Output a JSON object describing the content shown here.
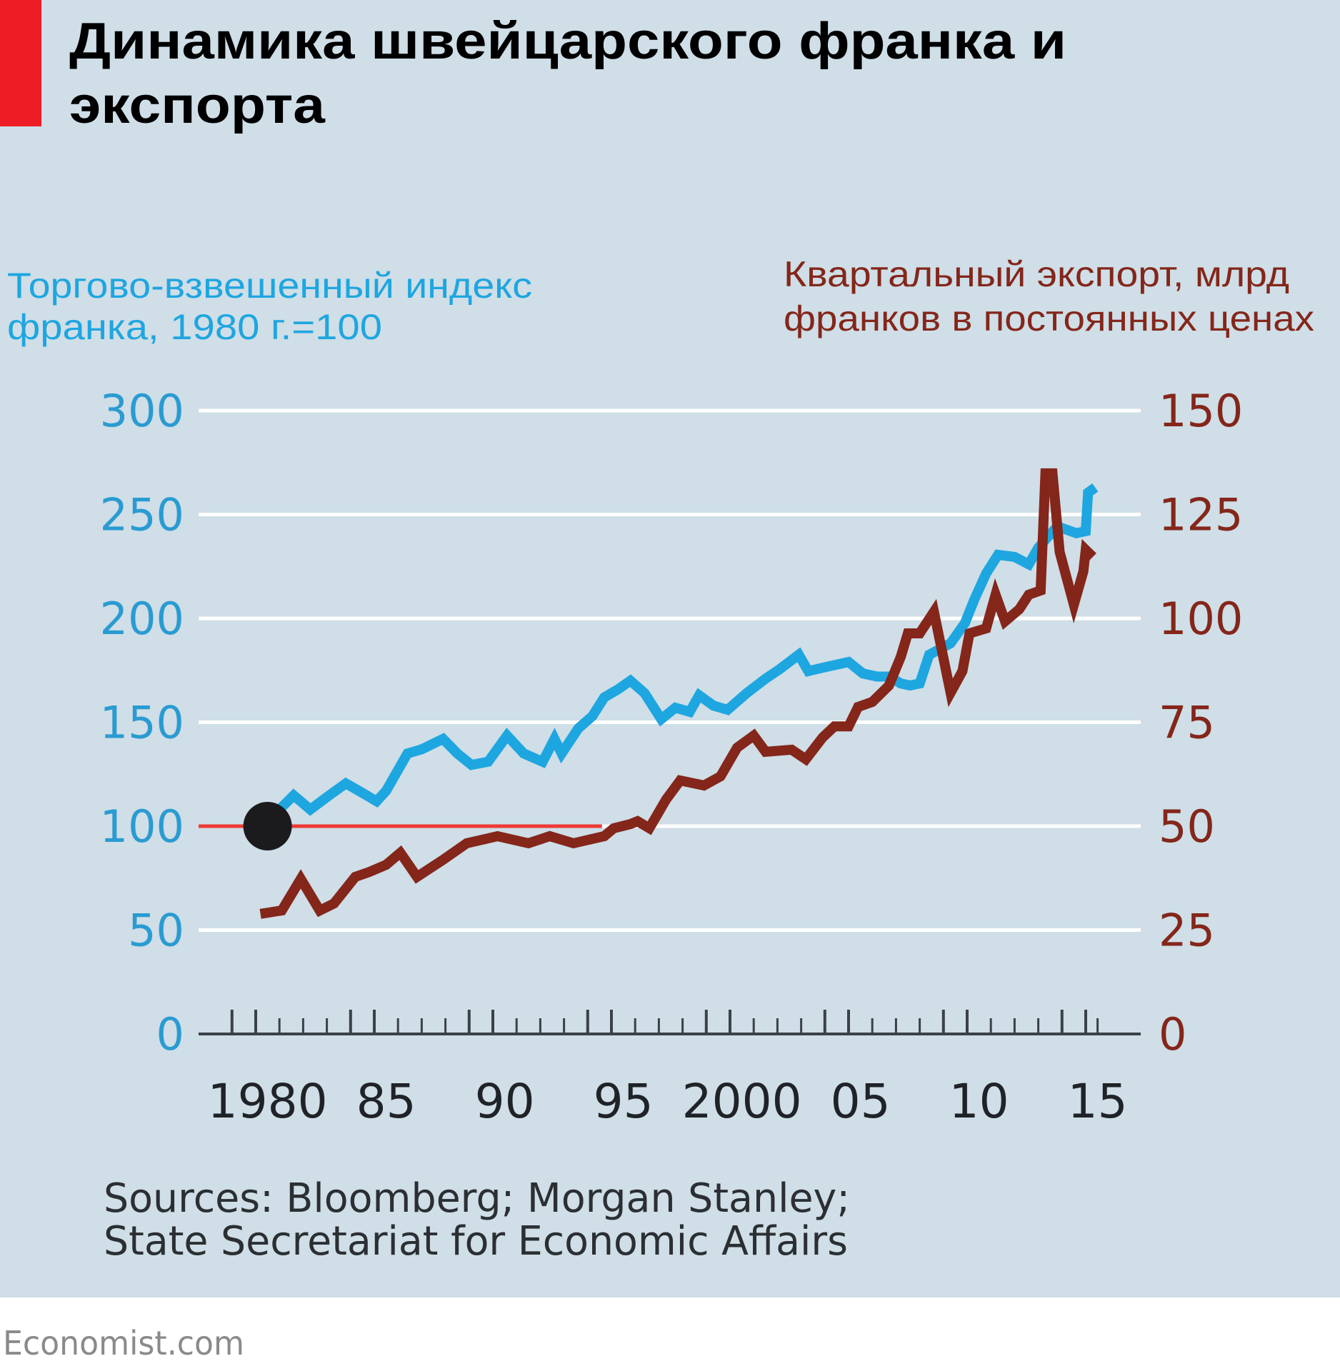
{
  "title": {
    "line1": "Динамика швейцарского франка и",
    "line2": "экспорта"
  },
  "colors": {
    "background": "#cfdee7",
    "accent_bar": "#ee1c25",
    "franc_series": "#1ea6e0",
    "exports_series": "#84261a",
    "reference_line": "#ee3a34",
    "marker": "#1b1b1e"
  },
  "footer": {
    "sources_line1": "Sources: Bloomberg; Morgan Stanley;",
    "sources_line2": "State Secretariat for Economic Affairs",
    "brand": "Economist.com"
  },
  "chart_data": {
    "type": "line",
    "title": "Динамика швейцарского франка и экспорта",
    "x_tick_labels": [
      "1980",
      "85",
      "90",
      "95",
      "2000",
      "05",
      "10",
      "15"
    ],
    "x_tick_years": [
      1980,
      1985,
      1990,
      1995,
      2000,
      2005,
      2010,
      2015
    ],
    "xlim": [
      1979,
      2016
    ],
    "grid": true,
    "left_axis": {
      "label_line1": "Торгово-взвешенный индекс",
      "label_line2": "франка, 1980 г.=100",
      "ylim": [
        0,
        300
      ],
      "ticks": [
        "0",
        "50",
        "100",
        "150",
        "200",
        "250",
        "300"
      ]
    },
    "right_axis": {
      "label_line1": "Квартальный экспорт, млрд",
      "label_line2": "франков в постоянных ценах",
      "ylim": [
        0,
        150
      ],
      "ticks": [
        "0",
        "25",
        "50",
        "75",
        "100",
        "125",
        "150"
      ]
    },
    "reference_line": {
      "axis": "left",
      "value": 100,
      "from": 1979,
      "to": 1994.6
    },
    "marker": {
      "x": 1980.5,
      "y": 100,
      "axis": "left"
    },
    "series": [
      {
        "name": "Торгово-взвешенный индекс франка, 1980 г.=100",
        "axis": "left",
        "x": [
          1980.6,
          1981.0,
          1981.6,
          1982.3,
          1983.0,
          1983.8,
          1984.5,
          1985.1,
          1985.5,
          1986.4,
          1987.0,
          1987.9,
          1988.5,
          1989.1,
          1989.8,
          1990.6,
          1991.3,
          1992.1,
          1992.6,
          1992.9,
          1993.6,
          1994.2,
          1994.7,
          1995.3,
          1995.8,
          1996.4,
          1997.1,
          1997.7,
          1998.3,
          1998.7,
          1999.3,
          1999.9,
          2000.7,
          2001.5,
          2002.1,
          2002.9,
          2003.3,
          2004.2,
          2005.0,
          2005.6,
          2006.2,
          2006.7,
          2007.2,
          2007.6,
          2008.0,
          2008.4,
          2009.3,
          2009.9,
          2010.3,
          2010.8,
          2011.3,
          2012.0,
          2012.6,
          2013.0,
          2013.8,
          2014.6,
          2015.0,
          2015.1,
          2015.4
        ],
        "y": [
          102,
          108,
          114.8,
          108,
          114,
          120.6,
          116,
          112,
          117,
          135,
          137,
          142,
          135,
          129.5,
          131,
          143.6,
          135,
          131,
          142,
          135,
          147,
          153,
          162,
          166,
          170,
          164,
          151.5,
          157,
          155,
          163,
          158,
          156,
          164,
          171,
          175.6,
          182.5,
          174.6,
          177,
          179,
          173.5,
          172,
          172,
          168.7,
          167.7,
          168.7,
          182.5,
          188,
          197.6,
          209,
          221.6,
          230.6,
          229.6,
          226,
          234,
          244.3,
          241,
          242,
          260.5,
          263
        ]
      },
      {
        "name": "Квартальный экспорт, млрд франков в постоянных ценах",
        "axis": "right",
        "x": [
          1980.2,
          1981.1,
          1981.9,
          1982.7,
          1983.3,
          1984.2,
          1984.8,
          1985.5,
          1986.1,
          1986.8,
          1987.9,
          1988.9,
          1990.2,
          1991.5,
          1992.4,
          1993.4,
          1994.7,
          1995.1,
          1995.8,
          1996.1,
          1996.6,
          1997.3,
          1997.9,
          1998.9,
          1999.6,
          2000.3,
          2001.0,
          2001.5,
          2002.6,
          2003.2,
          2003.9,
          2004.4,
          2005.0,
          2005.4,
          2006.0,
          2006.7,
          2007.2,
          2007.5,
          2008.0,
          2008.6,
          2009.3,
          2009.8,
          2010.1,
          2010.8,
          2011.2,
          2011.6,
          2012.2,
          2012.6,
          2013.1,
          2013.3,
          2013.6,
          2013.9,
          2014.5,
          2014.9,
          2015.0,
          2015.3
        ],
        "y": [
          28.9,
          29.7,
          37.3,
          29.7,
          31.4,
          37.8,
          39,
          40.7,
          43.6,
          37.8,
          41.9,
          45.9,
          47.6,
          45.9,
          47.6,
          45.9,
          47.6,
          49.5,
          50.5,
          51.2,
          49.5,
          56.4,
          61,
          59.8,
          62,
          68.9,
          71.8,
          67.9,
          68.4,
          66.1,
          71.3,
          74,
          74,
          78.7,
          79.9,
          83.8,
          90.7,
          96.4,
          96.4,
          101.6,
          82.1,
          87.3,
          96.4,
          97.6,
          105.7,
          99.3,
          102.2,
          105.7,
          106.7,
          134.9,
          134.9,
          116,
          103.3,
          111.3,
          116.5,
          114.8
        ]
      }
    ]
  }
}
